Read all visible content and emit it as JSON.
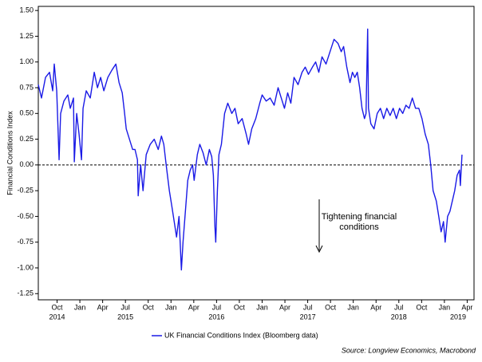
{
  "chart_data": {
    "type": "line",
    "y_axis_label": "Financial Conditions Index",
    "source": "Source: Longview Economics, Macrobond",
    "annotation": [
      "Tightening financial",
      "conditions"
    ],
    "annotation_color": "#8b0000",
    "reference_line": {
      "value": 0,
      "style": "dashed"
    },
    "xlim": [
      2014.544,
      2019.325
    ],
    "ylim": [
      -1.31,
      1.54
    ],
    "yticks": [
      {
        "value": 1.5,
        "label": "1.50"
      },
      {
        "value": 1.25,
        "label": "1.25"
      },
      {
        "value": 1,
        "label": "1.00"
      },
      {
        "value": 0.75,
        "label": "0.75"
      },
      {
        "value": 0.5,
        "label": "0.50"
      },
      {
        "value": 0.25,
        "label": "0.25"
      },
      {
        "value": 0,
        "label": "0.00"
      },
      {
        "value": -0.25,
        "label": "-0.25"
      },
      {
        "value": -0.5,
        "label": "-0.50"
      },
      {
        "value": -0.75,
        "label": "-0.75"
      },
      {
        "value": -1,
        "label": "-1.00"
      },
      {
        "value": -1.25,
        "label": "-1.25"
      }
    ],
    "xticks": [
      {
        "value": 2014.75,
        "label": "Oct"
      },
      {
        "value": 2015,
        "label": "Jan"
      },
      {
        "value": 2015.25,
        "label": "Apr"
      },
      {
        "value": 2015.5,
        "label": "Jul"
      },
      {
        "value": 2015.75,
        "label": "Oct"
      },
      {
        "value": 2016,
        "label": "Jan"
      },
      {
        "value": 2016.25,
        "label": "Apr"
      },
      {
        "value": 2016.5,
        "label": "Jul"
      },
      {
        "value": 2016.75,
        "label": "Oct"
      },
      {
        "value": 2017,
        "label": "Jan"
      },
      {
        "value": 2017.25,
        "label": "Apr"
      },
      {
        "value": 2017.5,
        "label": "Jul"
      },
      {
        "value": 2017.75,
        "label": "Oct"
      },
      {
        "value": 2018,
        "label": "Jan"
      },
      {
        "value": 2018.25,
        "label": "Apr"
      },
      {
        "value": 2018.5,
        "label": "Jul"
      },
      {
        "value": 2018.75,
        "label": "Oct"
      },
      {
        "value": 2019,
        "label": "Jan"
      },
      {
        "value": 2019.25,
        "label": "Apr"
      }
    ],
    "xtick_years": [
      {
        "value": 2014.75,
        "label": "2014"
      },
      {
        "value": 2015.5,
        "label": "2015"
      },
      {
        "value": 2016.5,
        "label": "2016"
      },
      {
        "value": 2017.5,
        "label": "2017"
      },
      {
        "value": 2018.5,
        "label": "2018"
      },
      {
        "value": 2019.15,
        "label": "2019"
      }
    ],
    "legend_position": "bottom",
    "x": [
      2014.544,
      2014.579,
      2014.623,
      2014.667,
      2014.702,
      2014.719,
      2014.746,
      2014.772,
      2014.789,
      2014.825,
      2014.868,
      2014.895,
      2014.93,
      2014.939,
      2014.965,
      2014.991,
      2015.018,
      2015.035,
      2015.07,
      2015.114,
      2015.158,
      2015.193,
      2015.228,
      2015.263,
      2015.307,
      2015.351,
      2015.395,
      2015.43,
      2015.465,
      2015.491,
      2015.509,
      2015.544,
      2015.579,
      2015.605,
      2015.632,
      2015.64,
      2015.667,
      2015.693,
      2015.728,
      2015.772,
      2015.816,
      2015.86,
      2015.895,
      2015.921,
      2015.947,
      2015.982,
      2016.009,
      2016.035,
      2016.061,
      2016.088,
      2016.114,
      2016.132,
      2016.158,
      2016.184,
      2016.211,
      2016.237,
      2016.254,
      2016.289,
      2016.316,
      2016.351,
      2016.386,
      2016.421,
      2016.447,
      2016.465,
      2016.482,
      2016.491,
      2016.509,
      2016.526,
      2016.553,
      2016.588,
      2016.623,
      2016.667,
      2016.702,
      2016.737,
      2016.781,
      2016.825,
      2016.851,
      2016.886,
      2016.93,
      2016.974,
      2017.0,
      2017.044,
      2017.088,
      2017.132,
      2017.175,
      2017.21,
      2017.245,
      2017.28,
      2017.315,
      2017.35,
      2017.394,
      2017.438,
      2017.473,
      2017.508,
      2017.552,
      2017.587,
      2017.622,
      2017.657,
      2017.701,
      2017.745,
      2017.789,
      2017.833,
      2017.868,
      2017.894,
      2017.929,
      2017.964,
      2017.991,
      2018.017,
      2018.044,
      2018.07,
      2018.096,
      2018.123,
      2018.14,
      2018.158,
      2018.167,
      2018.193,
      2018.228,
      2018.263,
      2018.298,
      2018.333,
      2018.368,
      2018.404,
      2018.438,
      2018.473,
      2018.508,
      2018.543,
      2018.578,
      2018.613,
      2018.648,
      2018.683,
      2018.719,
      2018.754,
      2018.789,
      2018.824,
      2018.85,
      2018.876,
      2018.911,
      2018.938,
      2018.964,
      2018.99,
      2019.008,
      2019.035,
      2019.061,
      2019.087,
      2019.113,
      2019.14,
      2019.166,
      2019.175,
      2019.193
    ],
    "series": [
      {
        "name": "UK Financial Conditions Index (Bloomberg data)",
        "color": "#1a1ae6",
        "values": [
          0.78,
          0.65,
          0.85,
          0.9,
          0.72,
          0.98,
          0.72,
          0.05,
          0.5,
          0.62,
          0.68,
          0.55,
          0.65,
          0.03,
          0.5,
          0.3,
          0.05,
          0.55,
          0.72,
          0.65,
          0.9,
          0.75,
          0.85,
          0.72,
          0.85,
          0.92,
          0.98,
          0.8,
          0.7,
          0.5,
          0.35,
          0.25,
          0.15,
          0.15,
          0.05,
          -0.3,
          0.0,
          -0.25,
          0.1,
          0.2,
          0.25,
          0.15,
          0.28,
          0.2,
          0.0,
          -0.25,
          -0.4,
          -0.55,
          -0.7,
          -0.5,
          -1.02,
          -0.75,
          -0.45,
          -0.15,
          -0.05,
          0.0,
          -0.15,
          0.1,
          0.2,
          0.12,
          0.0,
          0.15,
          0.08,
          -0.1,
          -0.6,
          -0.75,
          -0.25,
          0.1,
          0.2,
          0.5,
          0.6,
          0.5,
          0.55,
          0.4,
          0.45,
          0.3,
          0.2,
          0.35,
          0.45,
          0.6,
          0.68,
          0.62,
          0.65,
          0.58,
          0.75,
          0.65,
          0.55,
          0.7,
          0.6,
          0.85,
          0.78,
          0.9,
          0.95,
          0.88,
          0.95,
          1.0,
          0.9,
          1.05,
          0.98,
          1.1,
          1.22,
          1.18,
          1.1,
          1.15,
          0.95,
          0.8,
          0.9,
          0.85,
          0.9,
          0.75,
          0.55,
          0.45,
          0.5,
          1.32,
          0.55,
          0.4,
          0.35,
          0.5,
          0.55,
          0.45,
          0.55,
          0.48,
          0.55,
          0.45,
          0.55,
          0.5,
          0.58,
          0.55,
          0.65,
          0.55,
          0.55,
          0.45,
          0.3,
          0.2,
          0.0,
          -0.25,
          -0.35,
          -0.5,
          -0.65,
          -0.55,
          -0.75,
          -0.5,
          -0.45,
          -0.35,
          -0.25,
          -0.1,
          -0.05,
          -0.2,
          0.1
        ]
      }
    ]
  }
}
